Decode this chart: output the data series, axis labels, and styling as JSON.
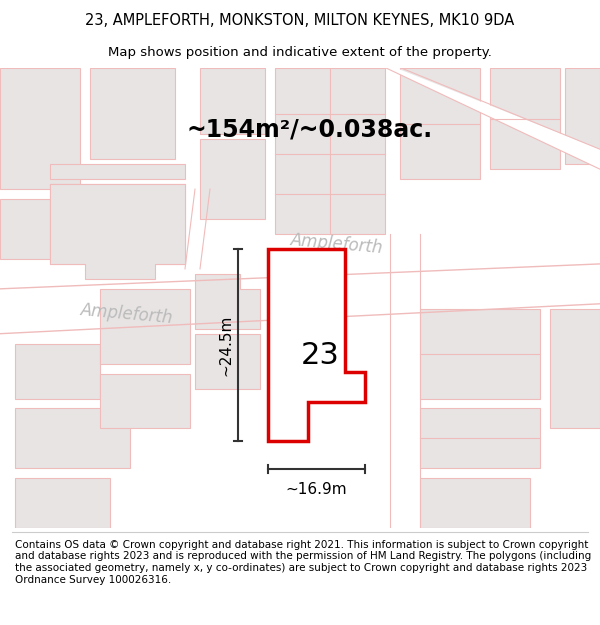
{
  "title": "23, AMPLEFORTH, MONKSTON, MILTON KEYNES, MK10 9DA",
  "subtitle": "Map shows position and indicative extent of the property.",
  "area_label": "~154m²/~0.038ac.",
  "number_label": "23",
  "dim_height_label": "~24.5m",
  "dim_width_label": "~16.9m",
  "street_label_left": "Ampleforth",
  "street_label_right": "Ampleforth",
  "footer": "Contains OS data © Crown copyright and database right 2021. This information is subject to Crown copyright and database rights 2023 and is reproduced with the permission of HM Land Registry. The polygons (including the associated geometry, namely x, y co-ordinates) are subject to Crown copyright and database rights 2023 Ordnance Survey 100026316.",
  "map_bg": "#ede8e8",
  "road_white": "#ffffff",
  "road_outline_color": "#f0bbbb",
  "bld_fill": "#e8e4e4",
  "bld_outline": "#f0bbbb",
  "plot_red": "#dd0000",
  "plot_fill": "#ffffff",
  "dim_color": "#333333",
  "street_color": "#bbbbbb",
  "title_fontsize": 10.5,
  "subtitle_fontsize": 9.5,
  "area_fontsize": 17,
  "number_fontsize": 22,
  "dim_fontsize": 11,
  "street_fontsize": 12,
  "footer_fontsize": 7.5
}
